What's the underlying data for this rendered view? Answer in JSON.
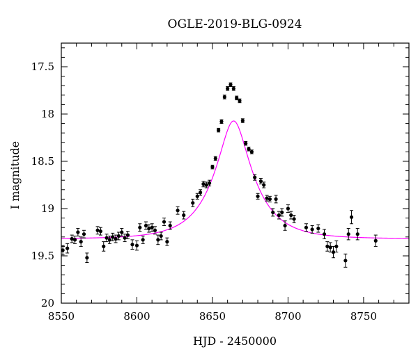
{
  "chart_data": {
    "type": "scatter",
    "title": "OGLE-2019-BLG-0924",
    "xlabel": "HJD - 2450000",
    "ylabel": "I magnitude",
    "xlim": [
      8550,
      8780
    ],
    "ylim": [
      20,
      17.25
    ],
    "y_inverted": true,
    "x_ticks": [
      "8550",
      "8600",
      "8650",
      "8700",
      "8750"
    ],
    "y_ticks": [
      "17.5",
      "18",
      "18.5",
      "19",
      "19.5",
      "20"
    ],
    "x_tick_values": [
      8550,
      8600,
      8650,
      8700,
      8750
    ],
    "y_tick_values": [
      17.5,
      18,
      18.5,
      19,
      19.5,
      20
    ],
    "grid": false,
    "colors": {
      "data": "#000000",
      "model": "#ff00ff"
    },
    "series": [
      {
        "kind": "points_with_errorbars",
        "x": [
          8551,
          8554,
          8557,
          8559,
          8561,
          8563,
          8565,
          8567,
          8574,
          8576,
          8578,
          8580,
          8582,
          8584,
          8586,
          8588,
          8590,
          8592,
          8594,
          8597,
          8600,
          8602,
          8604,
          8606,
          8608,
          8610,
          8612,
          8614,
          8616,
          8618,
          8620,
          8622,
          8627,
          8631,
          8637,
          8640,
          8642,
          8644,
          8646,
          8648,
          8650,
          8652,
          8654,
          8656,
          8658,
          8660,
          8662,
          8664,
          8666,
          8668,
          8670,
          8672,
          8674,
          8676,
          8678,
          8680,
          8682,
          8684,
          8686,
          8688,
          8690,
          8692,
          8694,
          8696,
          8698,
          8700,
          8702,
          8704,
          8712,
          8716,
          8720,
          8724,
          8726,
          8728,
          8730,
          8732,
          8738,
          8740,
          8742,
          8746,
          8758
        ],
        "y": [
          19.44,
          19.42,
          19.32,
          19.33,
          19.25,
          19.35,
          19.27,
          19.52,
          19.23,
          19.24,
          19.4,
          19.31,
          19.33,
          19.3,
          19.32,
          19.29,
          19.25,
          19.31,
          19.28,
          19.38,
          19.39,
          19.2,
          19.33,
          19.18,
          19.21,
          19.2,
          19.23,
          19.33,
          19.29,
          19.14,
          19.35,
          19.18,
          19.02,
          19.07,
          18.94,
          18.87,
          18.83,
          18.74,
          18.75,
          18.73,
          18.56,
          18.47,
          18.17,
          18.08,
          17.82,
          17.73,
          17.69,
          17.73,
          17.83,
          17.86,
          18.07,
          18.31,
          18.37,
          18.4,
          18.67,
          18.87,
          18.71,
          18.75,
          18.89,
          18.9,
          19.04,
          18.9,
          19.07,
          19.04,
          19.18,
          19.0,
          19.07,
          19.11,
          19.2,
          19.22,
          19.21,
          19.27,
          19.4,
          19.41,
          19.46,
          19.4,
          19.55,
          19.27,
          19.09,
          19.27,
          19.34
        ],
        "yerr": [
          0.05,
          0.05,
          0.04,
          0.04,
          0.04,
          0.05,
          0.04,
          0.05,
          0.04,
          0.04,
          0.05,
          0.04,
          0.04,
          0.04,
          0.04,
          0.04,
          0.04,
          0.04,
          0.04,
          0.05,
          0.05,
          0.04,
          0.04,
          0.04,
          0.04,
          0.04,
          0.04,
          0.05,
          0.04,
          0.04,
          0.04,
          0.04,
          0.04,
          0.04,
          0.04,
          0.03,
          0.03,
          0.03,
          0.03,
          0.03,
          0.02,
          0.02,
          0.02,
          0.02,
          0.02,
          0.02,
          0.02,
          0.02,
          0.02,
          0.02,
          0.02,
          0.02,
          0.02,
          0.02,
          0.03,
          0.03,
          0.03,
          0.03,
          0.03,
          0.03,
          0.04,
          0.04,
          0.04,
          0.04,
          0.05,
          0.04,
          0.04,
          0.04,
          0.04,
          0.04,
          0.04,
          0.05,
          0.05,
          0.05,
          0.06,
          0.06,
          0.07,
          0.06,
          0.07,
          0.06,
          0.06
        ]
      },
      {
        "kind": "model_curve",
        "t0": 8664,
        "tE": 26,
        "u0": 0.33,
        "baseline_mag": 19.32
      }
    ]
  }
}
